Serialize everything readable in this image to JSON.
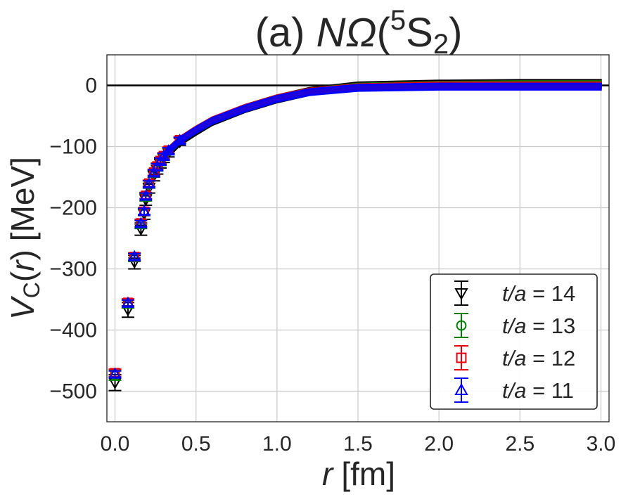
{
  "chart_data": {
    "type": "scatter",
    "title": {
      "prefix": "(a) ",
      "main": "NΩ",
      "open": "(",
      "sup": "5",
      "letter": "S",
      "sub": "2",
      "close": ")"
    },
    "xlabel": {
      "var": "r",
      "unit": "[fm]"
    },
    "ylabel": {
      "var": "V",
      "sub": "C",
      "open": "(",
      "arg": "r",
      "close": ")",
      "unit": "[MeV]"
    },
    "xlim": [
      -0.05,
      3.05
    ],
    "ylim": [
      -550,
      50
    ],
    "xticks": [
      0.0,
      0.5,
      1.0,
      1.5,
      2.0,
      2.5,
      3.0
    ],
    "xtick_labels": [
      "0.0",
      "0.5",
      "1.0",
      "1.5",
      "2.0",
      "2.5",
      "3.0"
    ],
    "yticks": [
      0,
      -100,
      -200,
      -300,
      -400,
      -500
    ],
    "ytick_labels": [
      "0",
      "−100",
      "−200",
      "−300",
      "−400",
      "−500"
    ],
    "grid": true,
    "reference_line_y": 0,
    "legend_position": "bottom-right",
    "series": [
      {
        "name": "t/a = 14",
        "var": "t/a",
        "value": "14",
        "color": "#000000",
        "marker": "triangle-down",
        "x": [
          0.0,
          0.08,
          0.12,
          0.16,
          0.18,
          0.19,
          0.21,
          0.24,
          0.26,
          0.28,
          0.3,
          0.33,
          0.4,
          0.5,
          0.6,
          0.8,
          1.0,
          1.2,
          1.5,
          2.0,
          2.5,
          3.0
        ],
        "y": [
          -486,
          -367,
          -289,
          -235,
          -210,
          -187,
          -168,
          -148,
          -138,
          -128,
          -119,
          -110,
          -92,
          -75,
          -59,
          -38,
          -22,
          -10,
          -1,
          2,
          3,
          3
        ],
        "err": [
          13,
          12,
          11,
          10,
          9,
          9,
          8,
          8,
          7,
          7,
          7,
          7,
          6,
          6,
          6,
          6,
          6,
          6,
          6,
          6,
          6,
          6
        ]
      },
      {
        "name": "t/a = 13",
        "var": "t/a",
        "value": "13",
        "color": "#008000",
        "marker": "circle",
        "x": [
          0.0,
          0.08,
          0.12,
          0.16,
          0.18,
          0.19,
          0.21,
          0.24,
          0.26,
          0.28,
          0.3,
          0.33,
          0.4,
          0.5,
          0.6,
          0.8,
          1.0,
          1.2,
          1.5,
          2.0,
          2.5,
          3.0
        ],
        "y": [
          -474,
          -357,
          -281,
          -227,
          -207,
          -183,
          -162,
          -144,
          -134,
          -125,
          -117,
          -108,
          -90,
          -73,
          -58,
          -37,
          -21,
          -10,
          -2,
          1,
          2,
          2
        ],
        "err": [
          8,
          7,
          7,
          7,
          6,
          6,
          6,
          6,
          6,
          6,
          5,
          5,
          5,
          5,
          5,
          5,
          5,
          5,
          5,
          5,
          5,
          5
        ]
      },
      {
        "name": "t/a = 12",
        "var": "t/a",
        "value": "12",
        "color": "#e8000b",
        "marker": "square",
        "x": [
          0.0,
          0.08,
          0.12,
          0.16,
          0.18,
          0.19,
          0.21,
          0.24,
          0.26,
          0.28,
          0.3,
          0.33,
          0.4,
          0.5,
          0.6,
          0.8,
          1.0,
          1.2,
          1.5,
          2.0,
          2.5,
          3.0
        ],
        "y": [
          -470,
          -355,
          -280,
          -225,
          -206,
          -180,
          -160,
          -142,
          -132,
          -123,
          -115,
          -106,
          -89,
          -72,
          -57,
          -37,
          -21,
          -10,
          -3,
          0,
          0,
          0
        ],
        "err": [
          6,
          6,
          6,
          6,
          6,
          5,
          5,
          5,
          5,
          5,
          5,
          5,
          5,
          5,
          5,
          5,
          5,
          5,
          5,
          5,
          5,
          5
        ]
      },
      {
        "name": "t/a = 11",
        "var": "t/a",
        "value": "11",
        "color": "#0000ff",
        "marker": "triangle-up",
        "x": [
          0.0,
          0.08,
          0.12,
          0.16,
          0.18,
          0.19,
          0.21,
          0.24,
          0.26,
          0.28,
          0.3,
          0.33,
          0.4,
          0.5,
          0.6,
          0.8,
          1.0,
          1.2,
          1.5,
          2.0,
          2.5,
          3.0
        ],
        "y": [
          -472,
          -356,
          -280,
          -226,
          -206,
          -181,
          -161,
          -143,
          -133,
          -124,
          -116,
          -107,
          -90,
          -73,
          -58,
          -38,
          -22,
          -11,
          -4,
          -2,
          -2,
          -2
        ],
        "err": [
          5,
          5,
          5,
          5,
          5,
          5,
          5,
          5,
          5,
          5,
          5,
          5,
          5,
          5,
          5,
          5,
          5,
          5,
          5,
          5,
          5,
          5
        ]
      }
    ]
  }
}
